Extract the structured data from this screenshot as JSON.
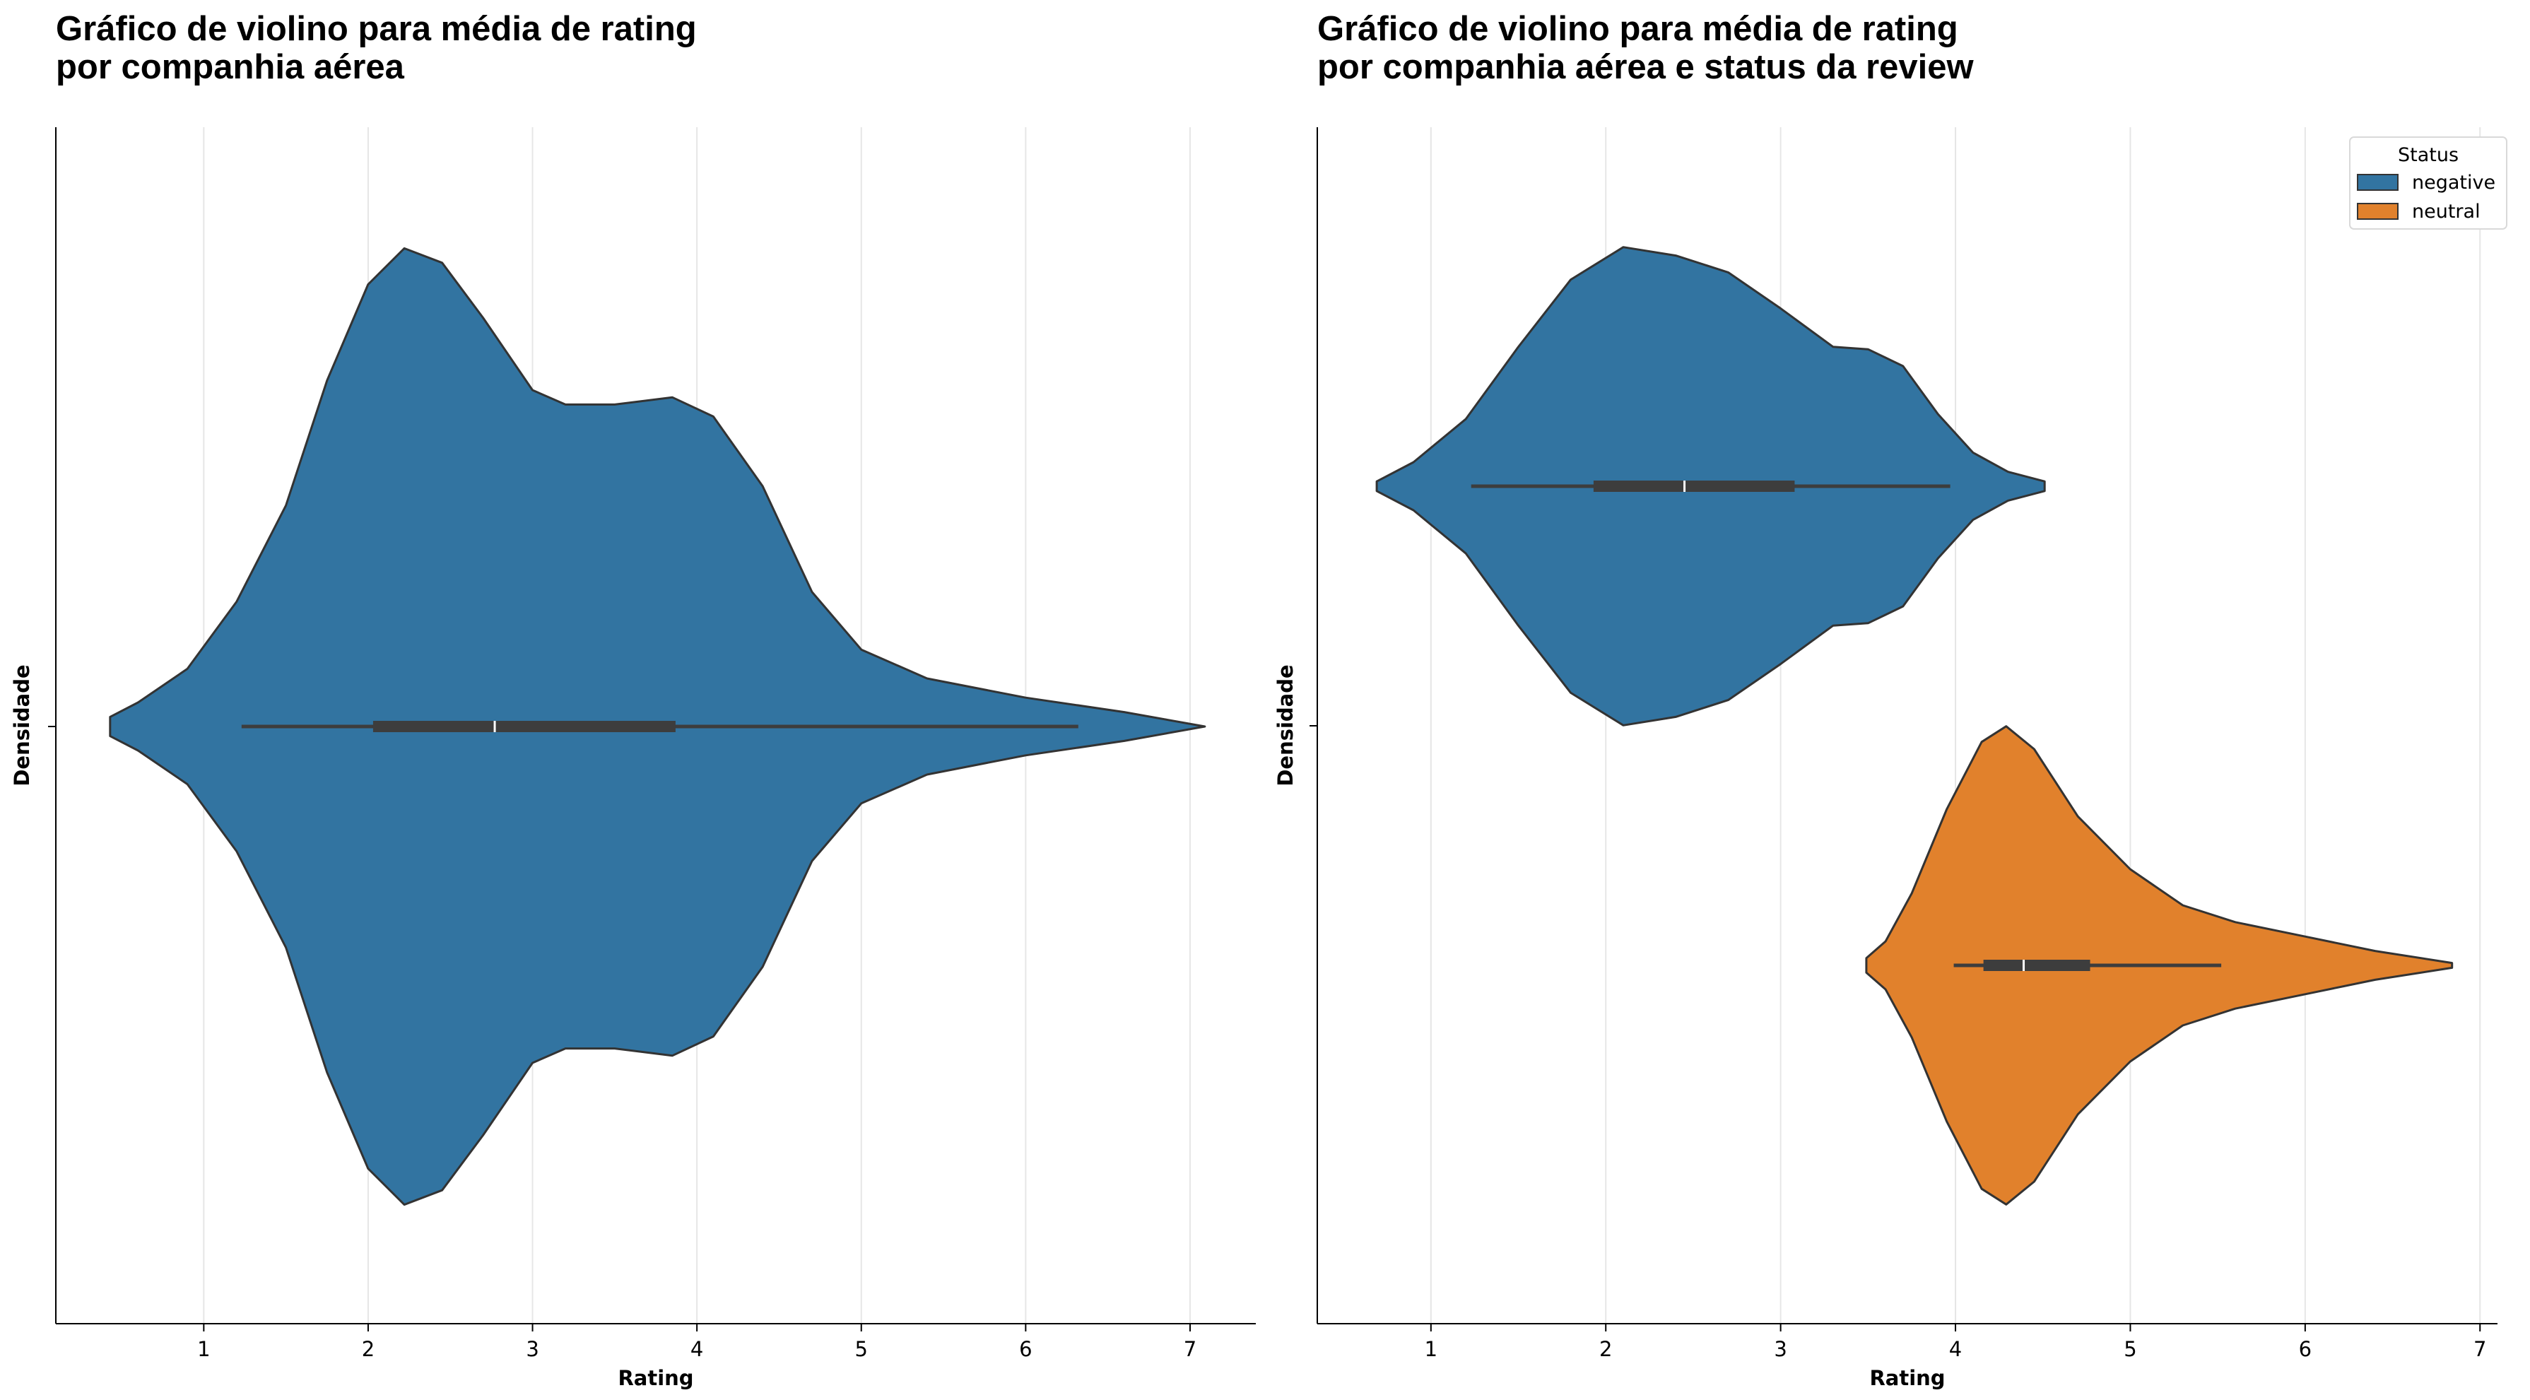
{
  "chart_data": [
    {
      "type": "violin",
      "title": [
        "Gráfico de violino para média de rating",
        "por companhia aérea"
      ],
      "xlabel": "Rating",
      "ylabel": "Densidade",
      "xlim": [
        0.1,
        7.4
      ],
      "xticks": [
        "1",
        "2",
        "3",
        "4",
        "5",
        "6",
        "7"
      ],
      "grid": "x",
      "legend": null,
      "violins": [
        {
          "name": "",
          "color": "#3274a1",
          "box": {
            "whisker_low": 1.23,
            "q1": 2.03,
            "median": 2.77,
            "q3": 3.87,
            "whisker_high": 6.32
          },
          "kde_min": 0.43,
          "kde_max": 7.09,
          "density": [
            [
              0.43,
              0.02
            ],
            [
              0.6,
              0.05
            ],
            [
              0.9,
              0.12
            ],
            [
              1.2,
              0.26
            ],
            [
              1.5,
              0.46
            ],
            [
              1.75,
              0.72
            ],
            [
              2.0,
              0.92
            ],
            [
              2.22,
              0.995
            ],
            [
              2.45,
              0.965
            ],
            [
              2.7,
              0.85
            ],
            [
              3.0,
              0.7
            ],
            [
              3.2,
              0.67
            ],
            [
              3.5,
              0.67
            ],
            [
              3.85,
              0.685
            ],
            [
              4.1,
              0.645
            ],
            [
              4.4,
              0.5
            ],
            [
              4.7,
              0.28
            ],
            [
              5.0,
              0.16
            ],
            [
              5.4,
              0.1
            ],
            [
              6.0,
              0.06
            ],
            [
              6.6,
              0.03
            ],
            [
              7.09,
              0.0
            ]
          ]
        }
      ]
    },
    {
      "type": "violin",
      "title": [
        "Gráfico de violino para média de rating",
        "por companhia aérea e status da review"
      ],
      "xlabel": "Rating",
      "ylabel": "Densidade",
      "xlim": [
        0.35,
        7.1
      ],
      "xticks": [
        "1",
        "2",
        "3",
        "4",
        "5",
        "6",
        "7"
      ],
      "grid": "x",
      "legend": {
        "title": "Status",
        "position": "top-right",
        "entries": [
          "negative",
          "neutral"
        ]
      },
      "violins": [
        {
          "name": "negative",
          "color": "#3274a1",
          "box": {
            "whisker_low": 1.23,
            "q1": 1.93,
            "median": 2.45,
            "q3": 3.08,
            "whisker_high": 3.97
          },
          "kde_min": 0.69,
          "kde_max": 4.51,
          "density": [
            [
              0.69,
              0.02
            ],
            [
              0.9,
              0.1
            ],
            [
              1.2,
              0.28
            ],
            [
              1.5,
              0.58
            ],
            [
              1.8,
              0.86
            ],
            [
              2.1,
              0.995
            ],
            [
              2.4,
              0.96
            ],
            [
              2.7,
              0.89
            ],
            [
              3.0,
              0.74
            ],
            [
              3.3,
              0.58
            ],
            [
              3.5,
              0.57
            ],
            [
              3.7,
              0.5
            ],
            [
              3.9,
              0.3
            ],
            [
              4.1,
              0.14
            ],
            [
              4.3,
              0.06
            ],
            [
              4.51,
              0.02
            ]
          ]
        },
        {
          "name": "neutral",
          "color": "#e1812c",
          "box": {
            "whisker_low": 3.99,
            "q1": 4.16,
            "median": 4.39,
            "q3": 4.77,
            "whisker_high": 5.52
          },
          "kde_min": 3.49,
          "kde_max": 6.84,
          "density": [
            [
              3.49,
              0.03
            ],
            [
              3.6,
              0.1
            ],
            [
              3.75,
              0.3
            ],
            [
              3.95,
              0.65
            ],
            [
              4.15,
              0.93
            ],
            [
              4.29,
              0.995
            ],
            [
              4.45,
              0.9
            ],
            [
              4.7,
              0.62
            ],
            [
              5.0,
              0.4
            ],
            [
              5.3,
              0.25
            ],
            [
              5.6,
              0.18
            ],
            [
              6.0,
              0.12
            ],
            [
              6.4,
              0.06
            ],
            [
              6.84,
              0.01
            ]
          ]
        }
      ]
    }
  ]
}
